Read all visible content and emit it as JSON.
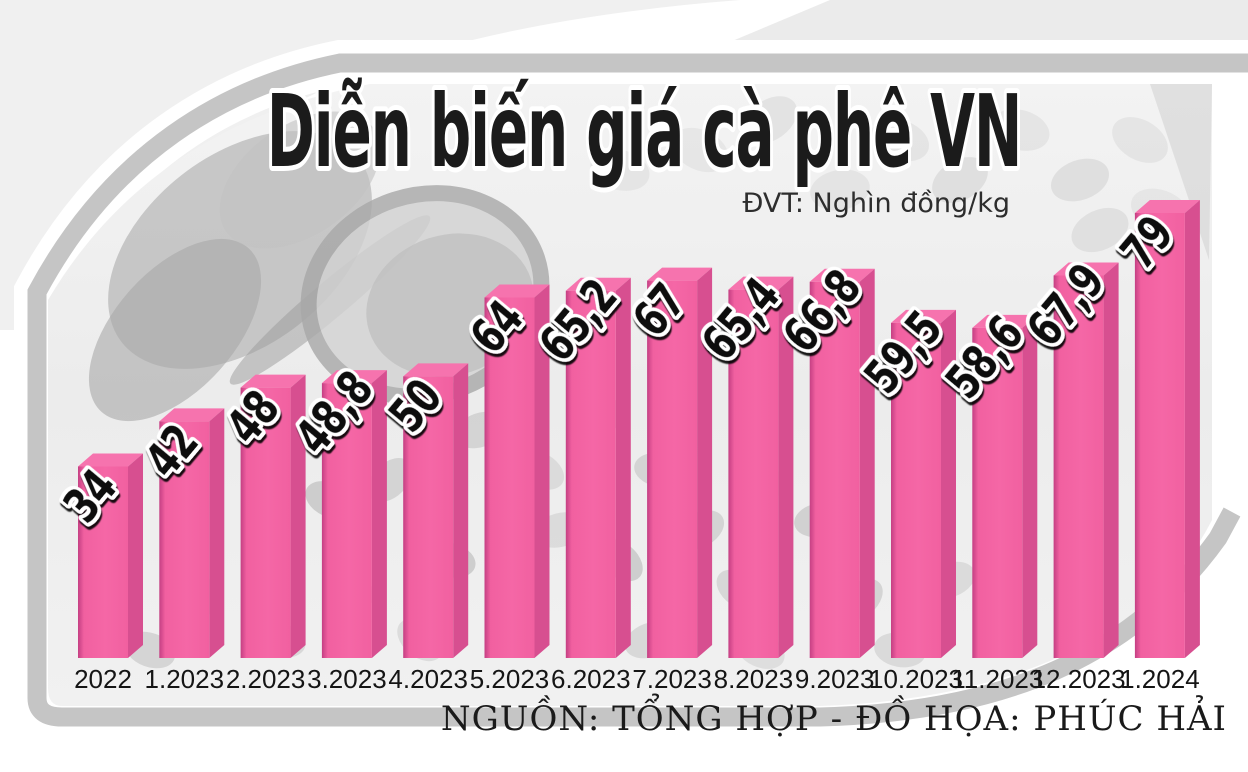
{
  "title": "Diễn biến giá cà phê VN",
  "unit_note": "ĐVT: Nghìn đồng/kg",
  "source_note": "NGUỒN: TỔNG HỢP - ĐỒ HỌA: PHÚC HẢI",
  "chart_data": {
    "type": "bar",
    "title": "Diễn biến giá cà phê VN",
    "unit": "Nghìn đồng/kg",
    "categories": [
      "2022",
      "1.2023",
      "2.2023",
      "3.2023",
      "4.2023",
      "5.2023",
      "6.2023",
      "7.2023",
      "8.2023",
      "9.2023",
      "10.2023",
      "11.2023",
      "12.2023",
      "1.2024"
    ],
    "values": [
      34,
      42,
      48,
      48.8,
      50,
      64,
      65.2,
      67,
      65.4,
      66.8,
      59.5,
      58.6,
      67.9,
      79
    ],
    "value_labels": [
      "34",
      "42",
      "48",
      "48,8",
      "50",
      "64",
      "65,2",
      "67",
      "65,4",
      "66,8",
      "59,5",
      "58,6",
      "67,9",
      "79"
    ],
    "ylim": [
      0,
      79
    ],
    "grid": false,
    "legend": "none",
    "bar_style": "3d-extruded",
    "colors": {
      "front": "#f160a0",
      "front_edge": "#c43f83",
      "side": "#d74f90",
      "top": "#f673ae",
      "value_text": "#111111",
      "value_outline": "#ffffff",
      "frame_band": "#c5c5c5",
      "photo_bg": "#efefef"
    }
  }
}
